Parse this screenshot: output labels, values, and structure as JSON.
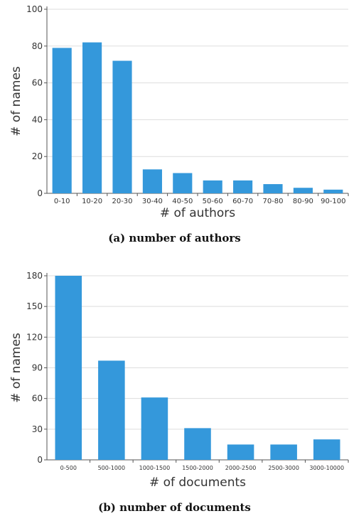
{
  "chart_data": [
    {
      "type": "bar",
      "title": "(a) number of authors",
      "xlabel": "# of authors",
      "ylabel": "# of names",
      "categories": [
        "0-10",
        "10-20",
        "20-30",
        "30-40",
        "40-50",
        "50-60",
        "60-70",
        "70-80",
        "80-90",
        "90-100"
      ],
      "values": [
        79,
        82,
        72,
        13,
        11,
        7,
        7,
        5,
        3,
        2
      ],
      "ylim": [
        0,
        100
      ],
      "yticks": [
        0,
        20,
        40,
        60,
        80,
        100
      ],
      "grid": true,
      "bar_color": "#3498db"
    },
    {
      "type": "bar",
      "title": "(b) number of documents",
      "xlabel": "# of documents",
      "ylabel": "# of names",
      "categories": [
        "0-500",
        "500-1000",
        "1000-1500",
        "1500-2000",
        "2000-2500",
        "2500-3000",
        "3000-10000"
      ],
      "values": [
        180,
        97,
        61,
        31,
        15,
        15,
        20
      ],
      "ylim": [
        0,
        180
      ],
      "yticks": [
        0,
        30,
        60,
        90,
        120,
        150,
        180
      ],
      "grid": true,
      "bar_color": "#3498db"
    }
  ]
}
